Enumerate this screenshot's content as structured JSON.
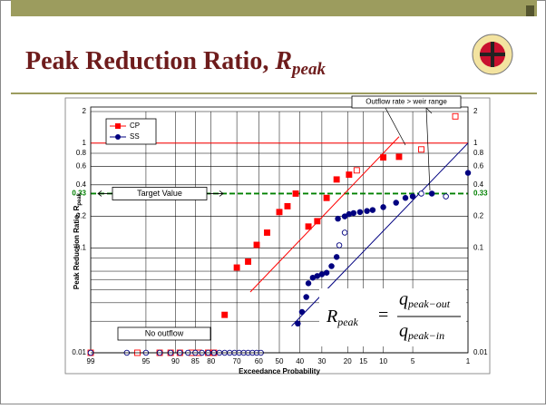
{
  "header": {
    "title": "Peak Reduction Ratio, ",
    "title_var": "R",
    "title_sub": "peak"
  },
  "chart_data": {
    "type": "scatter",
    "xscale": "probability",
    "yscale": "log",
    "xlabel": "Exceedance Probability",
    "ylabel": "Peak Reduction Ratio, R",
    "ylabel_sub": "peak",
    "xlim": [
      99,
      1
    ],
    "xticks": [
      99,
      95,
      90,
      85,
      80,
      70,
      60,
      50,
      40,
      30,
      20,
      15,
      10,
      5,
      1
    ],
    "ylim": [
      0.01,
      2
    ],
    "yticks": [
      0.01,
      0.1,
      0.2,
      0.4,
      0.6,
      0.8,
      1,
      2
    ],
    "minor_yticks": [
      0.02,
      0.03,
      0.04,
      0.05,
      0.06,
      0.08
    ],
    "grid": true,
    "legend": "upper left",
    "reference_line": {
      "value": 1,
      "color": "#ff0000"
    },
    "target": {
      "value": 0.33,
      "label": "Target Value",
      "color": "#008000"
    },
    "annotations": [
      "Outflow rate > weir range",
      "No outflow"
    ],
    "series": [
      {
        "name": "CP",
        "color": "#ff0000",
        "marker": "square",
        "x": [
          99,
          96,
          93,
          91,
          89,
          86,
          84,
          81,
          79,
          75,
          70,
          65,
          61,
          56,
          50,
          46,
          42,
          36,
          32,
          28,
          24,
          19.5,
          17,
          10,
          7,
          4,
          1.5
        ],
        "values": [
          0.01,
          0.01,
          0.01,
          0.01,
          0.01,
          0.01,
          0.01,
          0.01,
          0.01,
          0.023,
          0.065,
          0.074,
          0.107,
          0.14,
          0.22,
          0.25,
          0.33,
          0.16,
          0.18,
          0.3,
          0.45,
          0.5,
          0.55,
          0.73,
          0.74,
          0.87,
          1.8
        ],
        "hollow": [
          true,
          true,
          true,
          true,
          true,
          true,
          true,
          true,
          true,
          false,
          false,
          false,
          false,
          false,
          false,
          false,
          false,
          false,
          false,
          false,
          false,
          false,
          true,
          false,
          false,
          true,
          true
        ],
        "fit": {
          "x": [
            64,
            7
          ],
          "values": [
            0.038,
            1.15
          ]
        }
      },
      {
        "name": "SS",
        "color": "#000080",
        "marker": "circle",
        "x": [
          99,
          97,
          95,
          93,
          91,
          89,
          87,
          85,
          83,
          81,
          79,
          77,
          75,
          73,
          71,
          69,
          67,
          65,
          63,
          61,
          59,
          41,
          39,
          37,
          36,
          34,
          32,
          30,
          28,
          26,
          24,
          23,
          21,
          23.5,
          21,
          19.5,
          18,
          16,
          14,
          12.5,
          10,
          7.5,
          6,
          5,
          4,
          3,
          2,
          1
        ],
        "values": [
          0.01,
          0.01,
          0.01,
          0.01,
          0.01,
          0.01,
          0.01,
          0.01,
          0.01,
          0.01,
          0.01,
          0.01,
          0.01,
          0.01,
          0.01,
          0.01,
          0.01,
          0.01,
          0.01,
          0.01,
          0.01,
          0.019,
          0.0245,
          0.034,
          0.046,
          0.052,
          0.054,
          0.056,
          0.058,
          0.067,
          0.082,
          0.106,
          0.14,
          0.19,
          0.2,
          0.21,
          0.215,
          0.22,
          0.225,
          0.23,
          0.245,
          0.27,
          0.3,
          0.31,
          0.33,
          0.33,
          0.31,
          0.52
        ],
        "hollow": [
          true,
          true,
          true,
          true,
          true,
          true,
          true,
          true,
          true,
          true,
          true,
          true,
          true,
          true,
          true,
          true,
          true,
          true,
          true,
          true,
          true,
          false,
          false,
          false,
          false,
          false,
          false,
          false,
          false,
          false,
          false,
          true,
          true,
          false,
          false,
          false,
          false,
          false,
          false,
          false,
          false,
          false,
          false,
          false,
          true,
          false,
          true,
          false
        ],
        "fit": {
          "x": [
            44,
            1
          ],
          "values": [
            0.018,
            1.0
          ]
        }
      }
    ]
  },
  "formula": {
    "lhs": "R",
    "lhs_sub": "peak",
    "num": "q",
    "num_sub": "peak−out",
    "den": "q",
    "den_sub": "peak−in"
  }
}
